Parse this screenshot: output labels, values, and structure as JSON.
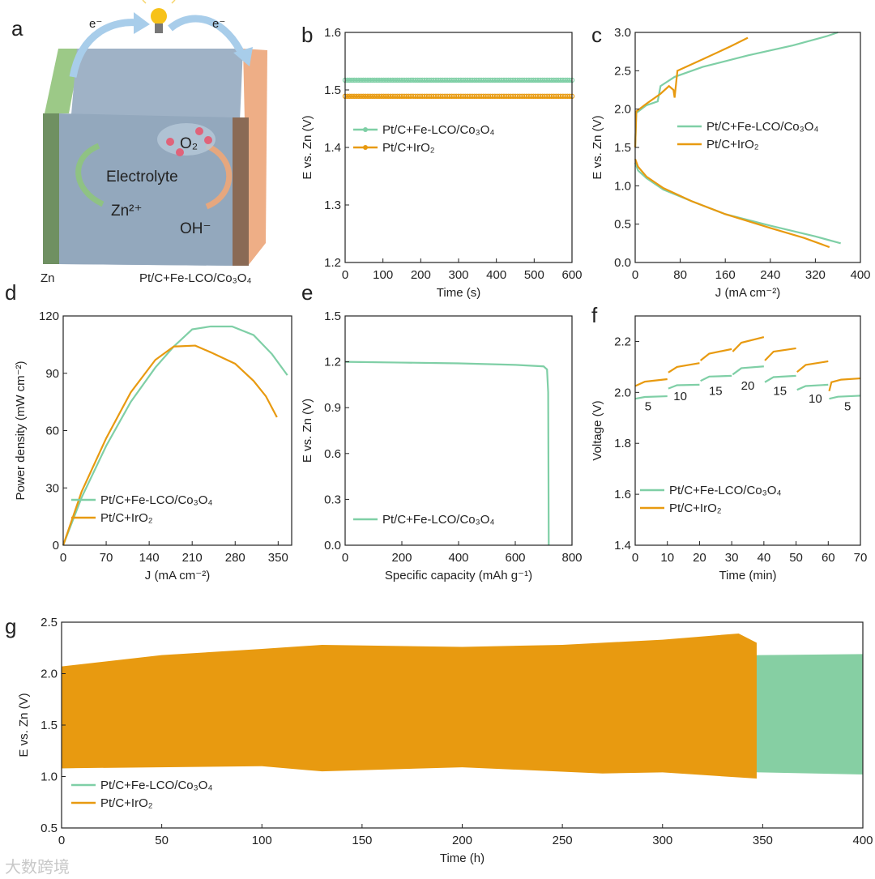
{
  "colors": {
    "green": "#7fcfa6",
    "orange": "#e89a10",
    "green_fill": "#86cfa3"
  },
  "schematic": {
    "panel_label": "a",
    "electron_left": "e⁻",
    "electron_right": "e⁻",
    "o2": "O₂",
    "electrolyte": "Electrolyte",
    "zn_ion": "Zn²⁺",
    "oh": "OH⁻",
    "anode": "Zn",
    "cathode": "Pt/C+Fe-LCO/Co₃O₄"
  },
  "watermark": "大数跨境",
  "chart_data": [
    {
      "id": "b",
      "panel_label": "b",
      "type": "line",
      "xlabel": "Time (s)",
      "ylabel": "E vs. Zn (V)",
      "xlim": [
        0,
        600
      ],
      "ylim": [
        1.2,
        1.6
      ],
      "xticks": [
        0,
        100,
        200,
        300,
        400,
        500,
        600
      ],
      "yticks": [
        1.2,
        1.3,
        1.4,
        1.5,
        1.6
      ],
      "ydec": 1,
      "legend": "middle-left",
      "markers": true,
      "series": [
        {
          "name": "Pt/C+Fe-LCO/Co₃O₄",
          "color": "green",
          "points": [
            [
              0,
              1.517
            ],
            [
              100,
              1.517
            ],
            [
              200,
              1.516
            ],
            [
              300,
              1.516
            ],
            [
              400,
              1.516
            ],
            [
              500,
              1.516
            ],
            [
              600,
              1.516
            ]
          ]
        },
        {
          "name": "Pt/C+IrO₂",
          "color": "orange",
          "points": [
            [
              0,
              1.489
            ],
            [
              100,
              1.488
            ],
            [
              200,
              1.487
            ],
            [
              300,
              1.487
            ],
            [
              400,
              1.487
            ],
            [
              500,
              1.487
            ],
            [
              600,
              1.487
            ]
          ]
        }
      ]
    },
    {
      "id": "c",
      "panel_label": "c",
      "type": "line",
      "xlabel": "J (mA cm⁻²)",
      "ylabel": "E vs. Zn (V)",
      "xlim": [
        0,
        400
      ],
      "ylim": [
        0,
        3.0
      ],
      "xticks": [
        0,
        80,
        160,
        240,
        320,
        400
      ],
      "yticks": [
        0,
        0.5,
        1.0,
        1.5,
        2.0,
        2.5,
        3.0
      ],
      "ydec": 1,
      "legend": "middle-right",
      "series": [
        {
          "name": "Pt/C+Fe-LCO/Co₃O₄",
          "color": "green",
          "points": [
            [
              0,
              1.3
            ],
            [
              5,
              1.2
            ],
            [
              20,
              1.1
            ],
            [
              50,
              0.95
            ],
            [
              100,
              0.8
            ],
            [
              160,
              0.63
            ],
            [
              240,
              0.48
            ],
            [
              320,
              0.34
            ],
            [
              365,
              0.25
            ],
            null,
            [
              0,
              1.5
            ],
            [
              2,
              1.95
            ],
            [
              20,
              2.05
            ],
            [
              40,
              2.1
            ],
            [
              45,
              2.3
            ],
            [
              70,
              2.42
            ],
            [
              120,
              2.55
            ],
            [
              200,
              2.7
            ],
            [
              280,
              2.83
            ],
            [
              340,
              2.95
            ],
            [
              360,
              3.0
            ]
          ]
        },
        {
          "name": "Pt/C+IrO₂",
          "color": "orange",
          "points": [
            [
              0,
              1.35
            ],
            [
              5,
              1.25
            ],
            [
              20,
              1.12
            ],
            [
              50,
              0.97
            ],
            [
              100,
              0.8
            ],
            [
              160,
              0.63
            ],
            [
              240,
              0.45
            ],
            [
              300,
              0.32
            ],
            [
              345,
              0.2
            ],
            null,
            [
              0,
              1.5
            ],
            [
              2,
              1.97
            ],
            [
              20,
              2.07
            ],
            [
              45,
              2.2
            ],
            [
              60,
              2.3
            ],
            [
              68,
              2.25
            ],
            [
              70,
              2.15
            ],
            [
              75,
              2.5
            ],
            [
              120,
              2.65
            ],
            [
              170,
              2.82
            ],
            [
              200,
              2.93
            ]
          ]
        }
      ]
    },
    {
      "id": "d",
      "panel_label": "d",
      "type": "line",
      "xlabel": "J (mA cm⁻²)",
      "ylabel": "Power density (mW cm⁻²)",
      "xlim": [
        0,
        372
      ],
      "ylim": [
        0,
        120
      ],
      "xticks": [
        0,
        70,
        140,
        210,
        280,
        350
      ],
      "yticks": [
        0,
        30,
        60,
        90,
        120
      ],
      "ydec": 0,
      "legend": "bottom-left",
      "series": [
        {
          "name": "Pt/C+Fe-LCO/Co₃O₄",
          "color": "green",
          "points": [
            [
              0,
              0
            ],
            [
              30,
              25
            ],
            [
              70,
              52
            ],
            [
              110,
              75
            ],
            [
              150,
              93
            ],
            [
              180,
              104
            ],
            [
              210,
              113
            ],
            [
              240,
              114.5
            ],
            [
              275,
              114.5
            ],
            [
              310,
              110
            ],
            [
              340,
              100
            ],
            [
              365,
              89
            ]
          ]
        },
        {
          "name": "Pt/C+IrO₂",
          "color": "orange",
          "points": [
            [
              0,
              0
            ],
            [
              30,
              28
            ],
            [
              70,
              56
            ],
            [
              110,
              80
            ],
            [
              150,
              97
            ],
            [
              180,
              104
            ],
            [
              215,
              104.5
            ],
            [
              240,
              101
            ],
            [
              280,
              95
            ],
            [
              310,
              86
            ],
            [
              330,
              78
            ],
            [
              348,
              67
            ]
          ]
        }
      ]
    },
    {
      "id": "e",
      "panel_label": "e",
      "type": "line",
      "xlabel": "Specific capacity (mAh g⁻¹)",
      "ylabel": "E vs. Zn (V)",
      "xlim": [
        0,
        800
      ],
      "ylim": [
        0,
        1.5
      ],
      "xticks": [
        0,
        200,
        400,
        600,
        800
      ],
      "yticks": [
        0,
        0.3,
        0.6,
        0.9,
        1.2,
        1.5
      ],
      "ydec": 1,
      "legend": "bottom-left",
      "series": [
        {
          "name": "Pt/C+Fe-LCO/Co₃O₄",
          "color": "green",
          "points": [
            [
              0,
              1.2
            ],
            [
              200,
              1.195
            ],
            [
              400,
              1.19
            ],
            [
              600,
              1.18
            ],
            [
              700,
              1.17
            ],
            [
              712,
              1.15
            ],
            [
              716,
              1.0
            ],
            [
              718,
              0
            ]
          ]
        }
      ]
    },
    {
      "id": "f",
      "panel_label": "f",
      "type": "line",
      "xlabel": "Time (min)",
      "ylabel": "Voltage (V)",
      "xlim": [
        0,
        70
      ],
      "ylim": [
        1.4,
        2.3
      ],
      "xticks": [
        0,
        10,
        20,
        30,
        40,
        50,
        60,
        70
      ],
      "yticks": [
        1.4,
        1.6,
        1.8,
        2.0,
        2.2
      ],
      "ydec": 1,
      "legend": "bottom-left",
      "step_labels": [
        {
          "x": 4,
          "y": 1.93,
          "t": "5"
        },
        {
          "x": 14,
          "y": 1.97,
          "t": "10"
        },
        {
          "x": 25,
          "y": 1.99,
          "t": "15"
        },
        {
          "x": 35,
          "y": 2.01,
          "t": "20"
        },
        {
          "x": 45,
          "y": 1.99,
          "t": "15"
        },
        {
          "x": 56,
          "y": 1.96,
          "t": "10"
        },
        {
          "x": 66,
          "y": 1.93,
          "t": "5"
        }
      ],
      "series": [
        {
          "name": "Pt/C+Fe-LCO/Co₃O₄",
          "color": "green",
          "points": [
            [
              0,
              1.975
            ],
            [
              3,
              1.982
            ],
            [
              10,
              1.985
            ],
            null,
            [
              10.3,
              2.015
            ],
            [
              13,
              2.028
            ],
            [
              20,
              2.03
            ],
            null,
            [
              20.3,
              2.045
            ],
            [
              23,
              2.062
            ],
            [
              30,
              2.065
            ],
            null,
            [
              30.3,
              2.07
            ],
            [
              33,
              2.095
            ],
            [
              40,
              2.102
            ],
            null,
            [
              40.3,
              2.04
            ],
            [
              43,
              2.06
            ],
            [
              50,
              2.065
            ],
            null,
            [
              50.3,
              2.01
            ],
            [
              53,
              2.025
            ],
            [
              60,
              2.03
            ],
            null,
            [
              60.3,
              1.975
            ],
            [
              63,
              1.983
            ],
            [
              70,
              1.987
            ]
          ]
        },
        {
          "name": "Pt/C+IrO₂",
          "color": "orange",
          "points": [
            [
              0,
              2.025
            ],
            [
              3,
              2.042
            ],
            [
              10,
              2.052
            ],
            null,
            [
              10.3,
              2.078
            ],
            [
              13,
              2.1
            ],
            [
              20,
              2.115
            ],
            null,
            [
              20.3,
              2.125
            ],
            [
              23,
              2.152
            ],
            [
              30,
              2.17
            ],
            null,
            [
              30.3,
              2.16
            ],
            [
              33,
              2.195
            ],
            [
              40,
              2.217
            ],
            null,
            [
              40.3,
              2.125
            ],
            [
              43,
              2.16
            ],
            [
              50,
              2.173
            ],
            null,
            [
              50.3,
              2.08
            ],
            [
              53,
              2.108
            ],
            [
              60,
              2.122
            ],
            null,
            [
              60.3,
              2.005
            ],
            [
              61,
              2.04
            ],
            [
              64,
              2.05
            ],
            [
              70,
              2.055
            ]
          ]
        }
      ]
    },
    {
      "id": "g",
      "panel_label": "g",
      "type": "area",
      "xlabel": "Time (h)",
      "ylabel": "E vs. Zn (V)",
      "xlim": [
        0,
        400
      ],
      "ylim": [
        0.5,
        2.5
      ],
      "xticks": [
        0,
        50,
        100,
        150,
        200,
        250,
        300,
        350,
        400
      ],
      "yticks": [
        0.5,
        1.0,
        1.5,
        2.0,
        2.5
      ],
      "ydec": 1,
      "legend": "bottom-left",
      "series": [
        {
          "name": "Pt/C+Fe-LCO/Co₃O₄",
          "color": "green",
          "upper": [
            [
              0,
              2.02
            ],
            [
              20,
              2.08
            ],
            [
              100,
              2.14
            ],
            [
              200,
              2.16
            ],
            [
              300,
              2.17
            ],
            [
              400,
              2.19
            ]
          ],
          "lower": [
            [
              0,
              1.08
            ],
            [
              50,
              1.1
            ],
            [
              100,
              1.11
            ],
            [
              200,
              1.1
            ],
            [
              300,
              1.06
            ],
            [
              400,
              1.02
            ]
          ]
        },
        {
          "name": "Pt/C+IrO₂",
          "color": "orange",
          "upper": [
            [
              0,
              2.07
            ],
            [
              50,
              2.18
            ],
            [
              100,
              2.24
            ],
            [
              130,
              2.28
            ],
            [
              200,
              2.26
            ],
            [
              250,
              2.28
            ],
            [
              300,
              2.33
            ],
            [
              338,
              2.39
            ],
            [
              347,
              2.3
            ]
          ],
          "lower": [
            [
              0,
              1.08
            ],
            [
              100,
              1.1
            ],
            [
              130,
              1.05
            ],
            [
              200,
              1.09
            ],
            [
              270,
              1.03
            ],
            [
              300,
              1.04
            ],
            [
              347,
              0.98
            ]
          ]
        }
      ]
    }
  ]
}
